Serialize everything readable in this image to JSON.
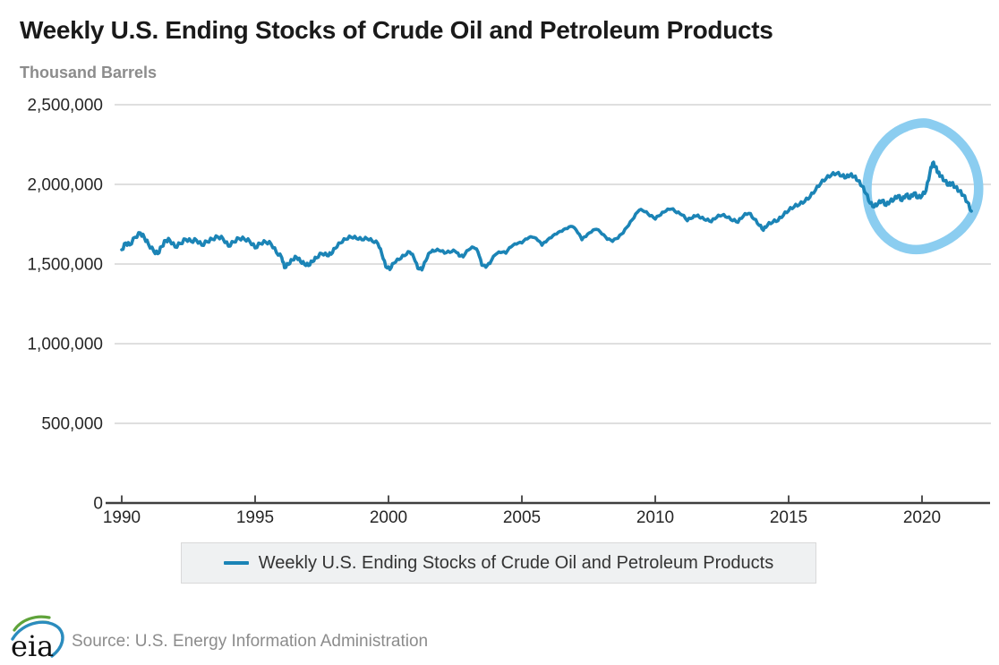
{
  "header": {
    "title": "Weekly U.S. Ending Stocks of Crude Oil and Petroleum Products",
    "units_label": "Thousand Barrels"
  },
  "legend": {
    "series_label": "Weekly U.S. Ending Stocks of Crude Oil and Petroleum Products",
    "swatch_color": "#1b84b6"
  },
  "footer": {
    "logo_text": "eia",
    "source_text": "Source: U.S. Energy Information Administration"
  },
  "colors": {
    "line": "#1b84b6",
    "annotation_circle": "#8bcdf0",
    "gridline": "#cccccc",
    "axis": "#3f3f3f",
    "title_text": "#1a1a1a",
    "muted_text": "#8c8c8c",
    "tick_text": "#262626",
    "legend_bg": "#eff1f2",
    "legend_border": "#d9d9d9"
  },
  "chart_data": {
    "type": "line",
    "title": "Weekly U.S. Ending Stocks of Crude Oil and Petroleum Products",
    "ylabel": "Thousand Barrels",
    "frequency": "weekly",
    "grid": "horizontal",
    "legend_position": "bottom",
    "xlim": [
      1989.4,
      2022.6
    ],
    "ylim": [
      0,
      2500000
    ],
    "yticks": [
      {
        "value": 0,
        "label": "0"
      },
      {
        "value": 500000,
        "label": "500,000"
      },
      {
        "value": 1000000,
        "label": "1,000,000"
      },
      {
        "value": 1500000,
        "label": "1,500,000"
      },
      {
        "value": 2000000,
        "label": "2,000,000"
      },
      {
        "value": 2500000,
        "label": "2,500,000"
      }
    ],
    "xticks": [
      {
        "value": 1990,
        "label": "1990"
      },
      {
        "value": 1995,
        "label": "1995"
      },
      {
        "value": 2000,
        "label": "2000"
      },
      {
        "value": 2005,
        "label": "2005"
      },
      {
        "value": 2010,
        "label": "2010"
      },
      {
        "value": 2015,
        "label": "2015"
      },
      {
        "value": 2020,
        "label": "2020"
      }
    ],
    "annotation": {
      "shape": "hand-drawn-circle",
      "color": "#8bcdf0",
      "center_x_year": 2020.0,
      "center_y_value": 1990000,
      "highlights": "2018-2022 period including the 2020 stock spike"
    },
    "series": [
      {
        "name": "Weekly U.S. Ending Stocks of Crude Oil and Petroleum Products",
        "color": "#1b84b6",
        "units": "thousand barrels",
        "points": [
          [
            1990.0,
            1590000
          ],
          [
            1990.15,
            1632000
          ],
          [
            1990.3,
            1620000
          ],
          [
            1990.5,
            1668000
          ],
          [
            1990.7,
            1695000
          ],
          [
            1990.85,
            1665000
          ],
          [
            1991.0,
            1625000
          ],
          [
            1991.2,
            1580000
          ],
          [
            1991.35,
            1565000
          ],
          [
            1991.5,
            1610000
          ],
          [
            1991.65,
            1648000
          ],
          [
            1991.8,
            1650000
          ],
          [
            1992.0,
            1607000
          ],
          [
            1992.2,
            1628000
          ],
          [
            1992.4,
            1655000
          ],
          [
            1992.6,
            1642000
          ],
          [
            1992.8,
            1650000
          ],
          [
            1993.0,
            1618000
          ],
          [
            1993.2,
            1640000
          ],
          [
            1993.4,
            1655000
          ],
          [
            1993.6,
            1670000
          ],
          [
            1993.8,
            1658000
          ],
          [
            1994.0,
            1612000
          ],
          [
            1994.2,
            1638000
          ],
          [
            1994.4,
            1660000
          ],
          [
            1994.6,
            1655000
          ],
          [
            1994.8,
            1642000
          ],
          [
            1995.0,
            1601000
          ],
          [
            1995.2,
            1628000
          ],
          [
            1995.4,
            1637000
          ],
          [
            1995.6,
            1625000
          ],
          [
            1995.8,
            1572000
          ],
          [
            1996.0,
            1540000
          ],
          [
            1996.1,
            1477000
          ],
          [
            1996.25,
            1498000
          ],
          [
            1996.4,
            1525000
          ],
          [
            1996.55,
            1542000
          ],
          [
            1996.7,
            1515000
          ],
          [
            1996.85,
            1498000
          ],
          [
            1997.0,
            1490000
          ],
          [
            1997.15,
            1515000
          ],
          [
            1997.3,
            1538000
          ],
          [
            1997.5,
            1565000
          ],
          [
            1997.7,
            1552000
          ],
          [
            1997.85,
            1562000
          ],
          [
            1998.0,
            1598000
          ],
          [
            1998.2,
            1632000
          ],
          [
            1998.4,
            1655000
          ],
          [
            1998.6,
            1668000
          ],
          [
            1998.8,
            1660000
          ],
          [
            1999.0,
            1652000
          ],
          [
            1999.2,
            1658000
          ],
          [
            1999.4,
            1642000
          ],
          [
            1999.6,
            1628000
          ],
          [
            1999.75,
            1562000
          ],
          [
            1999.9,
            1482000
          ],
          [
            2000.05,
            1465000
          ],
          [
            2000.2,
            1505000
          ],
          [
            2000.4,
            1528000
          ],
          [
            2000.6,
            1552000
          ],
          [
            2000.8,
            1575000
          ],
          [
            2000.95,
            1540000
          ],
          [
            2001.1,
            1472000
          ],
          [
            2001.25,
            1463000
          ],
          [
            2001.4,
            1520000
          ],
          [
            2001.55,
            1572000
          ],
          [
            2001.7,
            1580000
          ],
          [
            2001.9,
            1585000
          ],
          [
            2002.1,
            1568000
          ],
          [
            2002.3,
            1573000
          ],
          [
            2002.5,
            1580000
          ],
          [
            2002.65,
            1550000
          ],
          [
            2002.8,
            1545000
          ],
          [
            2003.0,
            1588000
          ],
          [
            2003.2,
            1603000
          ],
          [
            2003.35,
            1578000
          ],
          [
            2003.5,
            1492000
          ],
          [
            2003.65,
            1480000
          ],
          [
            2003.8,
            1503000
          ],
          [
            2004.0,
            1558000
          ],
          [
            2004.2,
            1572000
          ],
          [
            2004.4,
            1568000
          ],
          [
            2004.6,
            1608000
          ],
          [
            2004.8,
            1625000
          ],
          [
            2005.0,
            1632000
          ],
          [
            2005.2,
            1658000
          ],
          [
            2005.4,
            1668000
          ],
          [
            2005.6,
            1648000
          ],
          [
            2005.75,
            1618000
          ],
          [
            2005.9,
            1638000
          ],
          [
            2006.1,
            1665000
          ],
          [
            2006.3,
            1688000
          ],
          [
            2006.5,
            1705000
          ],
          [
            2006.7,
            1722000
          ],
          [
            2006.9,
            1735000
          ],
          [
            2007.1,
            1695000
          ],
          [
            2007.25,
            1652000
          ],
          [
            2007.4,
            1672000
          ],
          [
            2007.6,
            1700000
          ],
          [
            2007.8,
            1718000
          ],
          [
            2008.0,
            1688000
          ],
          [
            2008.2,
            1655000
          ],
          [
            2008.4,
            1642000
          ],
          [
            2008.6,
            1662000
          ],
          [
            2008.8,
            1695000
          ],
          [
            2009.0,
            1742000
          ],
          [
            2009.2,
            1790000
          ],
          [
            2009.4,
            1838000
          ],
          [
            2009.6,
            1828000
          ],
          [
            2009.8,
            1802000
          ],
          [
            2010.0,
            1782000
          ],
          [
            2010.2,
            1808000
          ],
          [
            2010.4,
            1832000
          ],
          [
            2010.6,
            1845000
          ],
          [
            2010.8,
            1822000
          ],
          [
            2011.0,
            1808000
          ],
          [
            2011.2,
            1772000
          ],
          [
            2011.4,
            1790000
          ],
          [
            2011.55,
            1802000
          ],
          [
            2011.7,
            1788000
          ],
          [
            2011.9,
            1775000
          ],
          [
            2012.1,
            1765000
          ],
          [
            2012.3,
            1792000
          ],
          [
            2012.5,
            1805000
          ],
          [
            2012.7,
            1792000
          ],
          [
            2012.9,
            1772000
          ],
          [
            2013.1,
            1762000
          ],
          [
            2013.3,
            1800000
          ],
          [
            2013.5,
            1818000
          ],
          [
            2013.7,
            1782000
          ],
          [
            2013.9,
            1742000
          ],
          [
            2014.05,
            1712000
          ],
          [
            2014.2,
            1742000
          ],
          [
            2014.4,
            1762000
          ],
          [
            2014.6,
            1772000
          ],
          [
            2014.8,
            1805000
          ],
          [
            2015.0,
            1835000
          ],
          [
            2015.2,
            1858000
          ],
          [
            2015.4,
            1872000
          ],
          [
            2015.6,
            1892000
          ],
          [
            2015.8,
            1920000
          ],
          [
            2016.0,
            1962000
          ],
          [
            2016.2,
            2005000
          ],
          [
            2016.4,
            2035000
          ],
          [
            2016.6,
            2058000
          ],
          [
            2016.8,
            2068000
          ],
          [
            2017.0,
            2052000
          ],
          [
            2017.15,
            2042000
          ],
          [
            2017.3,
            2058000
          ],
          [
            2017.45,
            2048000
          ],
          [
            2017.6,
            2022000
          ],
          [
            2017.75,
            1988000
          ],
          [
            2017.9,
            1942000
          ],
          [
            2018.05,
            1882000
          ],
          [
            2018.2,
            1858000
          ],
          [
            2018.35,
            1878000
          ],
          [
            2018.5,
            1898000
          ],
          [
            2018.65,
            1868000
          ],
          [
            2018.8,
            1892000
          ],
          [
            2018.95,
            1905000
          ],
          [
            2019.1,
            1928000
          ],
          [
            2019.25,
            1898000
          ],
          [
            2019.4,
            1935000
          ],
          [
            2019.55,
            1912000
          ],
          [
            2019.7,
            1945000
          ],
          [
            2019.85,
            1915000
          ],
          [
            2020.0,
            1928000
          ],
          [
            2020.15,
            1962000
          ],
          [
            2020.3,
            2075000
          ],
          [
            2020.4,
            2135000
          ],
          [
            2020.5,
            2112000
          ],
          [
            2020.6,
            2072000
          ],
          [
            2020.7,
            2052000
          ],
          [
            2020.85,
            2022000
          ],
          [
            2021.0,
            1995000
          ],
          [
            2021.1,
            2008000
          ],
          [
            2021.25,
            1982000
          ],
          [
            2021.4,
            1958000
          ],
          [
            2021.55,
            1932000
          ],
          [
            2021.7,
            1888000
          ],
          [
            2021.85,
            1832000
          ]
        ]
      }
    ]
  }
}
